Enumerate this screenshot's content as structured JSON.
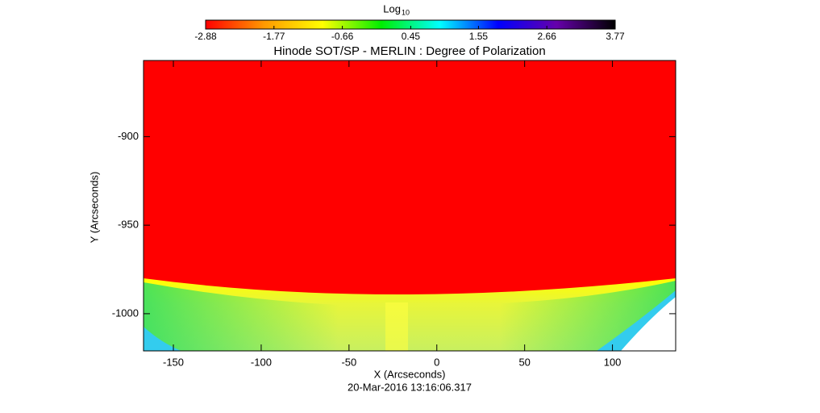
{
  "chart_data": {
    "type": "image",
    "title": "Hinode SOT/SP - MERLIN : Degree of Polarization",
    "subtitle": "20-Mar-2016 13:16:06.317",
    "x_label": "X (Arcseconds)",
    "y_label": "Y (Arcseconds)",
    "xlim": [
      -167,
      136
    ],
    "xticks": [
      -150,
      -100,
      -50,
      0,
      50,
      100
    ],
    "ylim": [
      -1021,
      -857
    ],
    "yticks": [
      -900,
      -950,
      -1000
    ],
    "colorbar": {
      "label": "Log",
      "label_sub": "10",
      "lim": [
        -2.88,
        3.77
      ],
      "ticks": [
        -2.88,
        -1.77,
        -0.66,
        0.45,
        1.55,
        2.66,
        3.77
      ],
      "colormap": [
        "#ff0000",
        "#ff9900",
        "#ffff00",
        "#00ee00",
        "#00ffff",
        "#0000ff",
        "#6600aa",
        "#000000"
      ]
    },
    "grid": false
  }
}
